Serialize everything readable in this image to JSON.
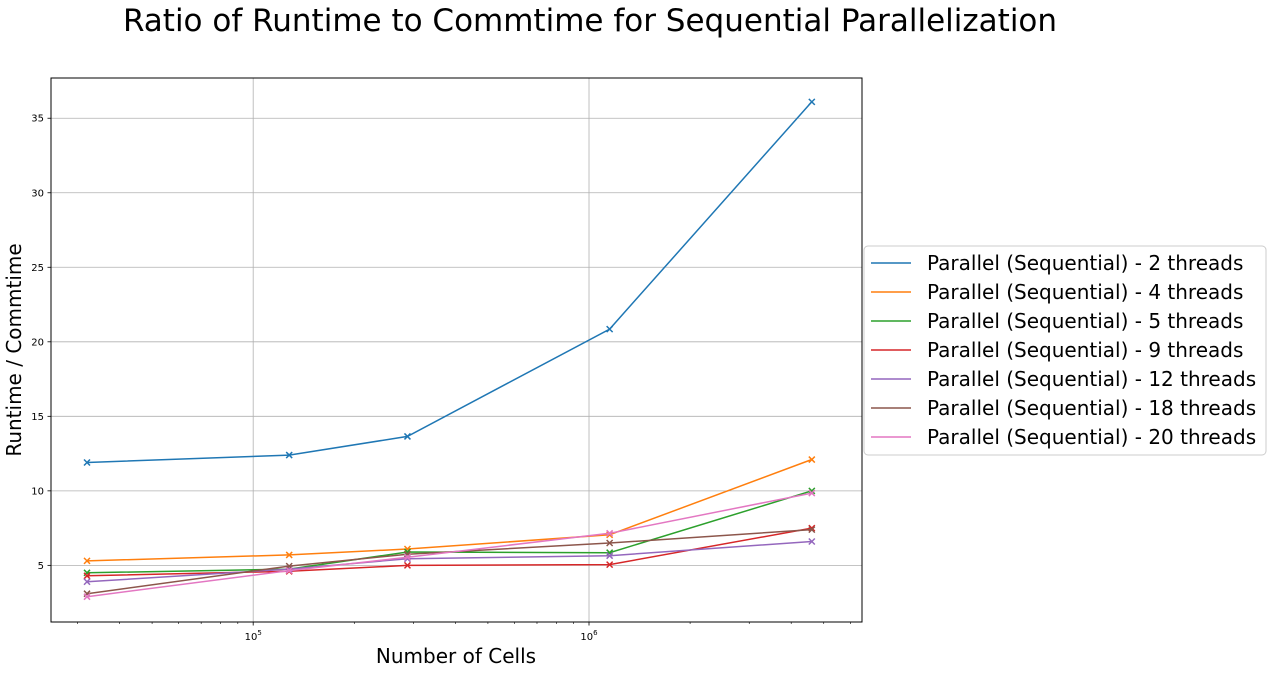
{
  "chart_data": {
    "type": "line",
    "title": "Ratio of Runtime to Commtime for Sequential Parallelization",
    "xlabel": "Number of Cells",
    "ylabel": "Runtime / Commtime",
    "xscale": "log",
    "xlim": [
      25000,
      6500000
    ],
    "ylim": [
      1.2,
      37.7
    ],
    "x_ticks": [
      {
        "value": 100000,
        "base": "10",
        "exp": "5"
      },
      {
        "value": 1000000,
        "base": "10",
        "exp": "6"
      }
    ],
    "y_ticks": [
      5,
      10,
      15,
      20,
      25,
      30,
      35
    ],
    "grid": true,
    "legend_position": "center-right, outside plot",
    "marker": "x",
    "x": [
      32000,
      128000,
      288000,
      1152000,
      4608000
    ],
    "series": [
      {
        "name": "Parallel (Sequential) - 2 threads",
        "color": "#1f77b4",
        "values": [
          11.9,
          12.4,
          13.65,
          20.85,
          36.1
        ]
      },
      {
        "name": "Parallel (Sequential) - 4 threads",
        "color": "#ff7f0e",
        "values": [
          5.3,
          5.7,
          6.1,
          7.05,
          12.1
        ]
      },
      {
        "name": "Parallel (Sequential) - 5 threads",
        "color": "#2ca02c",
        "values": [
          4.5,
          4.75,
          5.9,
          5.85,
          10.0
        ]
      },
      {
        "name": "Parallel (Sequential) - 9 threads",
        "color": "#d62728",
        "values": [
          4.3,
          4.6,
          5.0,
          5.05,
          7.5
        ]
      },
      {
        "name": "Parallel (Sequential) - 12 threads",
        "color": "#9467bd",
        "values": [
          3.9,
          4.75,
          5.45,
          5.65,
          6.6
        ]
      },
      {
        "name": "Parallel (Sequential) - 18 threads",
        "color": "#8c564b",
        "values": [
          3.1,
          4.95,
          5.75,
          6.5,
          7.4
        ]
      },
      {
        "name": "Parallel (Sequential) - 20 threads",
        "color": "#e377c2",
        "values": [
          2.9,
          4.65,
          5.55,
          7.15,
          9.85
        ]
      }
    ]
  }
}
